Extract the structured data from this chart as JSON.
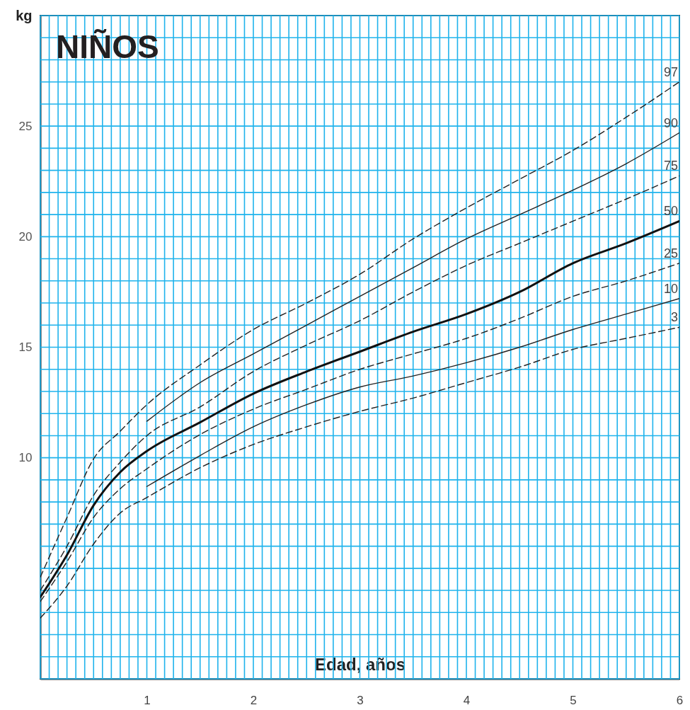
{
  "chart_data": {
    "type": "line",
    "title": "NIÑOS",
    "xlabel": "Edad, años",
    "ylabel": "kg",
    "xlim": [
      0,
      6
    ],
    "ylim": [
      0,
      30
    ],
    "grid": true,
    "xticks": [
      {
        "value": 0,
        "label": null
      },
      {
        "value": 0.0833,
        "label": null
      },
      {
        "value": 0.1667,
        "label": null
      },
      {
        "value": 0.25,
        "label": null
      },
      {
        "value": 0.3333,
        "label": null
      },
      {
        "value": 0.4167,
        "label": null
      },
      {
        "value": 0.5,
        "label": null
      },
      {
        "value": 0.5833,
        "label": null
      },
      {
        "value": 0.6667,
        "label": null
      },
      {
        "value": 0.75,
        "label": null
      },
      {
        "value": 0.8333,
        "label": null
      },
      {
        "value": 0.9167,
        "label": null
      },
      1,
      {
        "value": 1.0833,
        "label": null
      },
      {
        "value": 1.1667,
        "label": null
      },
      {
        "value": 1.25,
        "label": null
      },
      {
        "value": 1.3333,
        "label": null
      },
      {
        "value": 1.4167,
        "label": null
      },
      {
        "value": 1.5,
        "label": null
      },
      {
        "value": 1.5833,
        "label": null
      },
      {
        "value": 1.6667,
        "label": null
      },
      {
        "value": 1.75,
        "label": null
      },
      {
        "value": 1.8333,
        "label": null
      },
      {
        "value": 1.9167,
        "label": null
      },
      2,
      {
        "value": 2.0833,
        "label": null
      },
      {
        "value": 2.1667,
        "label": null
      },
      {
        "value": 2.25,
        "label": null
      },
      {
        "value": 2.3333,
        "label": null
      },
      {
        "value": 2.4167,
        "label": null
      },
      {
        "value": 2.5,
        "label": null
      },
      {
        "value": 2.5833,
        "label": null
      },
      {
        "value": 2.6667,
        "label": null
      },
      {
        "value": 2.75,
        "label": null
      },
      {
        "value": 2.8333,
        "label": null
      },
      {
        "value": 2.9167,
        "label": null
      },
      3,
      {
        "value": 3.0833,
        "label": null
      },
      {
        "value": 3.1667,
        "label": null
      },
      {
        "value": 3.25,
        "label": null
      },
      {
        "value": 3.3333,
        "label": null
      },
      {
        "value": 3.4167,
        "label": null
      },
      {
        "value": 3.5,
        "label": null
      },
      {
        "value": 3.5833,
        "label": null
      },
      {
        "value": 3.6667,
        "label": null
      },
      {
        "value": 3.75,
        "label": null
      },
      {
        "value": 3.8333,
        "label": null
      },
      {
        "value": 3.9167,
        "label": null
      },
      4,
      {
        "value": 4.0833,
        "label": null
      },
      {
        "value": 4.1667,
        "label": null
      },
      {
        "value": 4.25,
        "label": null
      },
      {
        "value": 4.3333,
        "label": null
      },
      {
        "value": 4.4167,
        "label": null
      },
      {
        "value": 4.5,
        "label": null
      },
      {
        "value": 4.5833,
        "label": null
      },
      {
        "value": 4.6667,
        "label": null
      },
      {
        "value": 4.75,
        "label": null
      },
      {
        "value": 4.8333,
        "label": null
      },
      {
        "value": 4.9167,
        "label": null
      },
      5,
      {
        "value": 5.0833,
        "label": null
      },
      {
        "value": 5.1667,
        "label": null
      },
      {
        "value": 5.25,
        "label": null
      },
      {
        "value": 5.3333,
        "label": null
      },
      {
        "value": 5.4167,
        "label": null
      },
      {
        "value": 5.5,
        "label": null
      },
      {
        "value": 5.5833,
        "label": null
      },
      {
        "value": 5.6667,
        "label": null
      },
      {
        "value": 5.75,
        "label": null
      },
      {
        "value": 5.8333,
        "label": null
      },
      {
        "value": 5.9167,
        "label": null
      },
      6
    ],
    "yticks": [
      {
        "value": 0,
        "label": null
      },
      {
        "value": 1,
        "label": null
      },
      {
        "value": 2,
        "label": null
      },
      {
        "value": 3,
        "label": null
      },
      {
        "value": 4,
        "label": null
      },
      {
        "value": 5,
        "label": null
      },
      {
        "value": 6,
        "label": null
      },
      {
        "value": 7,
        "label": null
      },
      {
        "value": 8,
        "label": null
      },
      {
        "value": 9,
        "label": null
      },
      10,
      {
        "value": 11,
        "label": null
      },
      {
        "value": 12,
        "label": null
      },
      {
        "value": 13,
        "label": null
      },
      {
        "value": 14,
        "label": null
      },
      15,
      {
        "value": 16,
        "label": null
      },
      {
        "value": 17,
        "label": null
      },
      {
        "value": 18,
        "label": null
      },
      {
        "value": 19,
        "label": null
      },
      20,
      {
        "value": 21,
        "label": null
      },
      {
        "value": 22,
        "label": null
      },
      {
        "value": 23,
        "label": null
      },
      {
        "value": 24,
        "label": null
      },
      25,
      {
        "value": 26,
        "label": null
      },
      {
        "value": 27,
        "label": null
      },
      {
        "value": 28,
        "label": null
      },
      {
        "value": 29,
        "label": null
      },
      {
        "value": 30,
        "label": null
      }
    ],
    "series": [
      {
        "name": "97",
        "color": "#222222",
        "line_style": "dashed",
        "x": [
          0,
          0.25,
          0.5,
          0.75,
          1,
          1.5,
          2,
          2.5,
          3,
          3.5,
          4,
          4.5,
          5,
          5.5,
          6
        ],
        "values": [
          4.6,
          7.3,
          9.95,
          11.2,
          12.4,
          14.2,
          15.8,
          17.0,
          18.3,
          19.9,
          21.3,
          22.6,
          23.9,
          25.4,
          27.0
        ]
      },
      {
        "name": "90",
        "color": "#222222",
        "line_style": "solid",
        "x": [
          1,
          1.5,
          2,
          2.5,
          3,
          3.5,
          4,
          4.5,
          5,
          5.5,
          6
        ],
        "values": [
          11.65,
          13.4,
          14.7,
          16.0,
          17.3,
          18.6,
          19.9,
          21.0,
          22.1,
          23.3,
          24.7
        ]
      },
      {
        "name": "75",
        "color": "#222222",
        "line_style": "dashed",
        "x": [
          0,
          0.25,
          0.5,
          0.75,
          1,
          1.5,
          2,
          2.5,
          3,
          3.5,
          4,
          4.5,
          5,
          5.5,
          6
        ],
        "values": [
          4.0,
          6.0,
          8.3,
          9.8,
          11.0,
          12.3,
          13.9,
          15.1,
          16.2,
          17.5,
          18.7,
          19.7,
          20.7,
          21.7,
          22.75
        ]
      },
      {
        "name": "50",
        "color": "#111111",
        "line_style": "solid",
        "x": [
          0,
          0.25,
          0.5,
          0.75,
          1,
          1.5,
          2,
          2.5,
          3,
          3.5,
          4,
          4.5,
          5,
          5.5,
          6
        ],
        "values": [
          3.7,
          5.6,
          7.85,
          9.35,
          10.3,
          11.6,
          12.9,
          13.9,
          14.8,
          15.7,
          16.5,
          17.5,
          18.8,
          19.7,
          20.7
        ]
      },
      {
        "name": "25",
        "color": "#222222",
        "line_style": "dashed",
        "x": [
          0,
          0.25,
          0.5,
          0.75,
          1,
          1.5,
          2,
          2.5,
          3,
          3.5,
          4,
          4.5,
          5,
          5.5,
          6
        ],
        "values": [
          3.5,
          5.3,
          7.3,
          8.6,
          9.5,
          11.05,
          12.2,
          13.1,
          14.0,
          14.7,
          15.4,
          16.3,
          17.3,
          18.0,
          18.8
        ]
      },
      {
        "name": "10",
        "color": "#222222",
        "line_style": "solid",
        "x": [
          1,
          1.5,
          2,
          2.5,
          3,
          3.5,
          4,
          4.5,
          5,
          5.5,
          6
        ],
        "values": [
          8.7,
          10.1,
          11.4,
          12.4,
          13.2,
          13.7,
          14.3,
          15.0,
          15.8,
          16.5,
          17.2
        ]
      },
      {
        "name": "3",
        "color": "#222222",
        "line_style": "dashed",
        "x": [
          0,
          0.25,
          0.5,
          0.75,
          1,
          1.5,
          2,
          2.5,
          3,
          3.5,
          4,
          4.5,
          5,
          5.5,
          6
        ],
        "values": [
          2.75,
          4.2,
          6.1,
          7.5,
          8.2,
          9.55,
          10.6,
          11.4,
          12.1,
          12.7,
          13.4,
          14.1,
          14.9,
          15.4,
          15.9
        ]
      }
    ]
  }
}
